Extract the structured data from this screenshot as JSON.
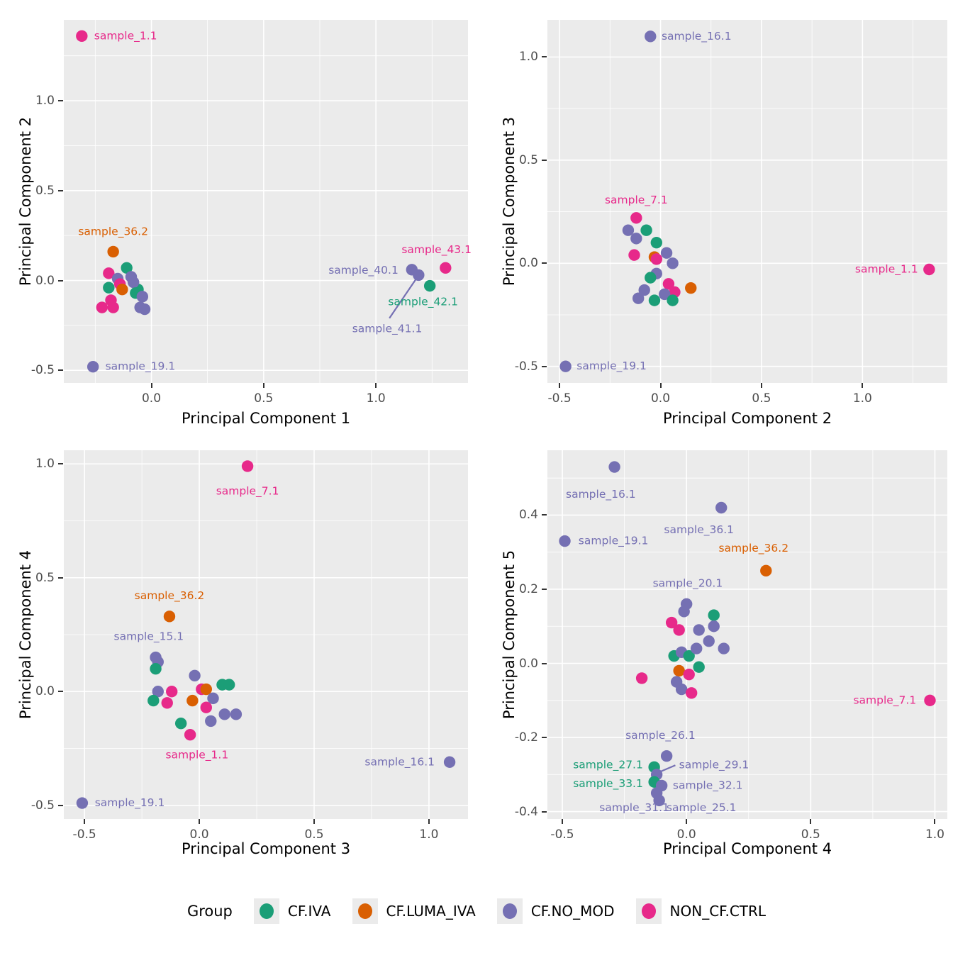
{
  "groups": {
    "iva": {
      "label": "CF.IVA",
      "color": "#1b9e77"
    },
    "luma": {
      "label": "CF.LUMA_IVA",
      "color": "#d95f02"
    },
    "nomod": {
      "label": "CF.NO_MOD",
      "color": "#7570b3"
    },
    "ctrl": {
      "label": "NON_CF.CTRL",
      "color": "#e7298a"
    }
  },
  "legend": {
    "title": "Group",
    "entries": [
      {
        "group": "iva",
        "label": "CF.IVA",
        "color": "#1b9e77"
      },
      {
        "group": "luma",
        "label": "CF.LUMA_IVA",
        "color": "#d95f02"
      },
      {
        "group": "nomod",
        "label": "CF.NO_MOD",
        "color": "#7570b3"
      },
      {
        "group": "ctrl",
        "label": "NON_CF.CTRL",
        "color": "#e7298a"
      }
    ]
  },
  "style": {
    "panel_background": "#ebebeb",
    "gridline_color": "#ffffff",
    "tick_text_color": "#4d4d4d",
    "axis_title_color": "#000000"
  },
  "chart_data": [
    {
      "type": "scatter",
      "xlabel": "Principal Component 1",
      "ylabel": "Principal Component 2",
      "x_range": [
        -0.39,
        1.41
      ],
      "y_range": [
        -0.57,
        1.45
      ],
      "x_ticks": [
        0.0,
        0.5,
        1.0
      ],
      "x_tick_labels": [
        "0.0",
        "0.5",
        "1.0"
      ],
      "y_ticks": [
        -0.5,
        0.0,
        0.5,
        1.0
      ],
      "y_tick_labels": [
        "-0.5",
        "0.0",
        "0.5",
        "1.0"
      ],
      "points": [
        {
          "x": -0.31,
          "y": 1.36,
          "g": "ctrl",
          "name": "sample_1.1"
        },
        {
          "x": -0.17,
          "y": 0.16,
          "g": "luma",
          "name": "sample_36.2"
        },
        {
          "x": -0.11,
          "y": 0.07,
          "g": "iva"
        },
        {
          "x": -0.19,
          "y": 0.04,
          "g": "ctrl"
        },
        {
          "x": -0.09,
          "y": 0.02,
          "g": "nomod"
        },
        {
          "x": -0.15,
          "y": 0.01,
          "g": "nomod"
        },
        {
          "x": -0.19,
          "y": -0.04,
          "g": "iva"
        },
        {
          "x": -0.14,
          "y": -0.02,
          "g": "ctrl"
        },
        {
          "x": -0.13,
          "y": -0.05,
          "g": "luma"
        },
        {
          "x": -0.06,
          "y": -0.05,
          "g": "iva"
        },
        {
          "x": -0.08,
          "y": -0.01,
          "g": "nomod"
        },
        {
          "x": -0.07,
          "y": -0.07,
          "g": "iva"
        },
        {
          "x": -0.04,
          "y": -0.09,
          "g": "nomod"
        },
        {
          "x": -0.05,
          "y": -0.15,
          "g": "nomod"
        },
        {
          "x": -0.18,
          "y": -0.11,
          "g": "ctrl"
        },
        {
          "x": -0.22,
          "y": -0.15,
          "g": "ctrl"
        },
        {
          "x": -0.17,
          "y": -0.15,
          "g": "ctrl"
        },
        {
          "x": -0.03,
          "y": -0.16,
          "g": "nomod"
        },
        {
          "x": -0.26,
          "y": -0.48,
          "g": "nomod",
          "name": "sample_19.1"
        },
        {
          "x": 1.16,
          "y": 0.06,
          "g": "nomod",
          "name": "sample_40.1"
        },
        {
          "x": 1.19,
          "y": 0.03,
          "g": "nomod",
          "name": "sample_41.1"
        },
        {
          "x": 1.24,
          "y": -0.03,
          "g": "iva",
          "name": "sample_42.1"
        },
        {
          "x": 1.31,
          "y": 0.07,
          "g": "ctrl",
          "name": "sample_43.1"
        }
      ],
      "labels": [
        {
          "text": "sample_1.1",
          "g": "ctrl",
          "x": -0.255,
          "y": 1.36,
          "anchor": "start"
        },
        {
          "text": "sample_36.2",
          "g": "luma",
          "x": -0.17,
          "y": 0.27,
          "anchor": "middle"
        },
        {
          "text": "sample_19.1",
          "g": "nomod",
          "x": -0.205,
          "y": -0.48,
          "anchor": "start"
        },
        {
          "text": "sample_40.1",
          "g": "nomod",
          "x": 1.1,
          "y": 0.055,
          "anchor": "end"
        },
        {
          "text": "sample_41.1",
          "g": "nomod",
          "x": 1.05,
          "y": -0.27,
          "anchor": "middle"
        },
        {
          "text": "sample_42.1",
          "g": "iva",
          "x": 1.21,
          "y": -0.12,
          "anchor": "middle"
        },
        {
          "text": "sample_43.1",
          "g": "ctrl",
          "x": 1.27,
          "y": 0.17,
          "anchor": "middle"
        }
      ],
      "segments": [
        {
          "g": "nomod",
          "x1": 1.06,
          "y1": -0.21,
          "x2": 1.185,
          "y2": 0.02
        }
      ]
    },
    {
      "type": "scatter",
      "xlabel": "Principal Component 2",
      "ylabel": "Principal Component 3",
      "x_range": [
        -0.56,
        1.42
      ],
      "y_range": [
        -0.58,
        1.18
      ],
      "x_ticks": [
        -0.5,
        0.0,
        0.5,
        1.0
      ],
      "x_tick_labels": [
        "-0.5",
        "0.0",
        "0.5",
        "1.0"
      ],
      "y_ticks": [
        -0.5,
        0.0,
        0.5,
        1.0
      ],
      "y_tick_labels": [
        "-0.5",
        "0.0",
        "0.5",
        "1.0"
      ],
      "points": [
        {
          "x": -0.05,
          "y": 1.1,
          "g": "nomod",
          "name": "sample_16.1"
        },
        {
          "x": -0.12,
          "y": 0.22,
          "g": "ctrl",
          "name": "sample_7.1"
        },
        {
          "x": -0.16,
          "y": 0.16,
          "g": "nomod"
        },
        {
          "x": -0.12,
          "y": 0.12,
          "g": "nomod"
        },
        {
          "x": -0.07,
          "y": 0.16,
          "g": "iva"
        },
        {
          "x": -0.02,
          "y": 0.1,
          "g": "iva"
        },
        {
          "x": -0.13,
          "y": 0.04,
          "g": "ctrl"
        },
        {
          "x": -0.03,
          "y": 0.03,
          "g": "luma"
        },
        {
          "x": -0.02,
          "y": 0.02,
          "g": "ctrl"
        },
        {
          "x": 0.03,
          "y": 0.05,
          "g": "nomod"
        },
        {
          "x": 0.06,
          "y": 0.0,
          "g": "nomod"
        },
        {
          "x": -0.02,
          "y": -0.05,
          "g": "nomod"
        },
        {
          "x": -0.05,
          "y": -0.07,
          "g": "iva"
        },
        {
          "x": 0.04,
          "y": -0.1,
          "g": "ctrl"
        },
        {
          "x": 0.07,
          "y": -0.14,
          "g": "ctrl"
        },
        {
          "x": 0.15,
          "y": -0.12,
          "g": "luma"
        },
        {
          "x": -0.08,
          "y": -0.13,
          "g": "nomod"
        },
        {
          "x": -0.11,
          "y": -0.17,
          "g": "nomod"
        },
        {
          "x": -0.03,
          "y": -0.18,
          "g": "iva"
        },
        {
          "x": 0.02,
          "y": -0.15,
          "g": "nomod"
        },
        {
          "x": 0.06,
          "y": -0.18,
          "g": "iva"
        },
        {
          "x": 1.33,
          "y": -0.03,
          "g": "ctrl",
          "name": "sample_1.1"
        },
        {
          "x": -0.47,
          "y": -0.5,
          "g": "nomod",
          "name": "sample_19.1"
        }
      ],
      "labels": [
        {
          "text": "sample_16.1",
          "g": "nomod",
          "x": 0.005,
          "y": 1.1,
          "anchor": "start"
        },
        {
          "text": "sample_7.1",
          "g": "ctrl",
          "x": -0.12,
          "y": 0.305,
          "anchor": "middle"
        },
        {
          "text": "sample_1.1",
          "g": "ctrl",
          "x": 1.275,
          "y": -0.03,
          "anchor": "end"
        },
        {
          "text": "sample_19.1",
          "g": "nomod",
          "x": -0.415,
          "y": -0.5,
          "anchor": "start"
        }
      ],
      "segments": []
    },
    {
      "type": "scatter",
      "xlabel": "Principal Component 3",
      "ylabel": "Principal Component 4",
      "x_range": [
        -0.59,
        1.17
      ],
      "y_range": [
        -0.56,
        1.06
      ],
      "x_ticks": [
        -0.5,
        0.0,
        0.5,
        1.0
      ],
      "x_tick_labels": [
        "-0.5",
        "0.0",
        "0.5",
        "1.0"
      ],
      "y_ticks": [
        -0.5,
        0.0,
        0.5,
        1.0
      ],
      "y_tick_labels": [
        "-0.5",
        "0.0",
        "0.5",
        "1.0"
      ],
      "points": [
        {
          "x": 0.21,
          "y": 0.99,
          "g": "ctrl",
          "name": "sample_7.1"
        },
        {
          "x": -0.13,
          "y": 0.33,
          "g": "luma",
          "name": "sample_36.2"
        },
        {
          "x": -0.19,
          "y": 0.15,
          "g": "nomod",
          "name": "sample_15.1"
        },
        {
          "x": -0.18,
          "y": 0.13,
          "g": "nomod"
        },
        {
          "x": -0.19,
          "y": 0.1,
          "g": "iva"
        },
        {
          "x": -0.02,
          "y": 0.07,
          "g": "nomod"
        },
        {
          "x": -0.18,
          "y": 0.0,
          "g": "nomod"
        },
        {
          "x": -0.12,
          "y": 0.0,
          "g": "ctrl"
        },
        {
          "x": -0.14,
          "y": -0.05,
          "g": "ctrl"
        },
        {
          "x": -0.2,
          "y": -0.04,
          "g": "iva"
        },
        {
          "x": 0.01,
          "y": 0.01,
          "g": "ctrl"
        },
        {
          "x": 0.03,
          "y": 0.01,
          "g": "luma"
        },
        {
          "x": -0.03,
          "y": -0.04,
          "g": "luma"
        },
        {
          "x": 0.1,
          "y": 0.03,
          "g": "iva"
        },
        {
          "x": 0.13,
          "y": 0.03,
          "g": "iva"
        },
        {
          "x": 0.06,
          "y": -0.03,
          "g": "nomod"
        },
        {
          "x": 0.03,
          "y": -0.07,
          "g": "ctrl"
        },
        {
          "x": 0.11,
          "y": -0.1,
          "g": "nomod"
        },
        {
          "x": 0.16,
          "y": -0.1,
          "g": "nomod"
        },
        {
          "x": 0.05,
          "y": -0.13,
          "g": "nomod"
        },
        {
          "x": -0.08,
          "y": -0.14,
          "g": "iva"
        },
        {
          "x": -0.04,
          "y": -0.19,
          "g": "ctrl",
          "name": "sample_1.1"
        },
        {
          "x": 1.09,
          "y": -0.31,
          "g": "nomod",
          "name": "sample_16.1"
        },
        {
          "x": -0.51,
          "y": -0.49,
          "g": "nomod",
          "name": "sample_19.1"
        }
      ],
      "labels": [
        {
          "text": "sample_7.1",
          "g": "ctrl",
          "x": 0.21,
          "y": 0.88,
          "anchor": "middle"
        },
        {
          "text": "sample_36.2",
          "g": "luma",
          "x": -0.13,
          "y": 0.42,
          "anchor": "middle"
        },
        {
          "text": "sample_15.1",
          "g": "nomod",
          "x": -0.22,
          "y": 0.24,
          "anchor": "middle"
        },
        {
          "text": "sample_1.1",
          "g": "ctrl",
          "x": -0.01,
          "y": -0.28,
          "anchor": "middle"
        },
        {
          "text": "sample_16.1",
          "g": "nomod",
          "x": 1.025,
          "y": -0.31,
          "anchor": "end"
        },
        {
          "text": "sample_19.1",
          "g": "nomod",
          "x": -0.455,
          "y": -0.49,
          "anchor": "start"
        }
      ],
      "segments": []
    },
    {
      "type": "scatter",
      "xlabel": "Principal Component 4",
      "ylabel": "Principal Component 5",
      "x_range": [
        -0.56,
        1.05
      ],
      "y_range": [
        -0.42,
        0.575
      ],
      "x_ticks": [
        -0.5,
        0.0,
        0.5,
        1.0
      ],
      "x_tick_labels": [
        "-0.5",
        "0.0",
        "0.5",
        "1.0"
      ],
      "y_ticks": [
        -0.4,
        -0.2,
        0.0,
        0.2,
        0.4
      ],
      "y_tick_labels": [
        "-0.4",
        "-0.2",
        "0.0",
        "0.2",
        "0.4"
      ],
      "points": [
        {
          "x": -0.29,
          "y": 0.53,
          "g": "nomod",
          "name": "sample_16.1"
        },
        {
          "x": 0.14,
          "y": 0.42,
          "g": "nomod",
          "name": "sample_36.1"
        },
        {
          "x": -0.49,
          "y": 0.33,
          "g": "nomod",
          "name": "sample_19.1"
        },
        {
          "x": 0.32,
          "y": 0.25,
          "g": "luma",
          "name": "sample_36.2"
        },
        {
          "x": 0.0,
          "y": 0.16,
          "g": "nomod",
          "name": "sample_20.1"
        },
        {
          "x": -0.01,
          "y": 0.14,
          "g": "nomod"
        },
        {
          "x": 0.11,
          "y": 0.13,
          "g": "iva"
        },
        {
          "x": 0.11,
          "y": 0.1,
          "g": "nomod"
        },
        {
          "x": -0.06,
          "y": 0.11,
          "g": "ctrl"
        },
        {
          "x": -0.03,
          "y": 0.09,
          "g": "ctrl"
        },
        {
          "x": 0.05,
          "y": 0.09,
          "g": "nomod"
        },
        {
          "x": 0.09,
          "y": 0.06,
          "g": "nomod"
        },
        {
          "x": 0.15,
          "y": 0.04,
          "g": "nomod"
        },
        {
          "x": -0.05,
          "y": 0.02,
          "g": "iva"
        },
        {
          "x": -0.02,
          "y": 0.03,
          "g": "nomod"
        },
        {
          "x": 0.01,
          "y": 0.02,
          "g": "iva"
        },
        {
          "x": 0.04,
          "y": 0.04,
          "g": "nomod"
        },
        {
          "x": -0.03,
          "y": -0.02,
          "g": "luma"
        },
        {
          "x": 0.05,
          "y": -0.01,
          "g": "iva"
        },
        {
          "x": 0.01,
          "y": -0.03,
          "g": "ctrl"
        },
        {
          "x": -0.18,
          "y": -0.04,
          "g": "ctrl"
        },
        {
          "x": -0.04,
          "y": -0.05,
          "g": "nomod"
        },
        {
          "x": -0.02,
          "y": -0.07,
          "g": "nomod"
        },
        {
          "x": 0.02,
          "y": -0.08,
          "g": "ctrl"
        },
        {
          "x": 0.98,
          "y": -0.1,
          "g": "ctrl",
          "name": "sample_7.1"
        },
        {
          "x": -0.08,
          "y": -0.25,
          "g": "nomod",
          "name": "sample_26.1"
        },
        {
          "x": -0.13,
          "y": -0.28,
          "g": "iva",
          "name": "sample_27.1"
        },
        {
          "x": -0.12,
          "y": -0.3,
          "g": "nomod",
          "name": "sample_29.1"
        },
        {
          "x": -0.13,
          "y": -0.32,
          "g": "iva",
          "name": "sample_33.1"
        },
        {
          "x": -0.1,
          "y": -0.33,
          "g": "nomod",
          "name": "sample_32.1"
        },
        {
          "x": -0.12,
          "y": -0.35,
          "g": "nomod",
          "name": "sample_31.1"
        },
        {
          "x": -0.11,
          "y": -0.37,
          "g": "nomod",
          "name": "sample_25.1"
        }
      ],
      "labels": [
        {
          "text": "sample_16.1",
          "g": "nomod",
          "x": -0.345,
          "y": 0.455,
          "anchor": "middle"
        },
        {
          "text": "sample_36.1",
          "g": "nomod",
          "x": 0.05,
          "y": 0.36,
          "anchor": "middle"
        },
        {
          "text": "sample_19.1",
          "g": "nomod",
          "x": -0.435,
          "y": 0.33,
          "anchor": "start"
        },
        {
          "text": "sample_36.2",
          "g": "luma",
          "x": 0.27,
          "y": 0.31,
          "anchor": "middle"
        },
        {
          "text": "sample_20.1",
          "g": "nomod",
          "x": 0.005,
          "y": 0.215,
          "anchor": "middle"
        },
        {
          "text": "sample_7.1",
          "g": "ctrl",
          "x": 0.925,
          "y": -0.1,
          "anchor": "end"
        },
        {
          "text": "sample_26.1",
          "g": "nomod",
          "x": -0.105,
          "y": -0.195,
          "anchor": "middle"
        },
        {
          "text": "sample_27.1",
          "g": "iva",
          "x": -0.175,
          "y": -0.275,
          "anchor": "end"
        },
        {
          "text": "sample_29.1",
          "g": "nomod",
          "x": -0.03,
          "y": -0.275,
          "anchor": "start"
        },
        {
          "text": "sample_33.1",
          "g": "iva",
          "x": -0.175,
          "y": -0.325,
          "anchor": "end"
        },
        {
          "text": "sample_32.1",
          "g": "nomod",
          "x": -0.055,
          "y": -0.33,
          "anchor": "start"
        },
        {
          "text": "sample_31.1",
          "g": "nomod",
          "x": -0.21,
          "y": -0.39,
          "anchor": "middle"
        },
        {
          "text": "sample_25.1",
          "g": "nomod",
          "x": 0.06,
          "y": -0.39,
          "anchor": "middle"
        }
      ],
      "segments": [
        {
          "g": "nomod",
          "x1": -0.045,
          "y1": -0.275,
          "x2": -0.115,
          "y2": -0.295
        }
      ]
    }
  ]
}
